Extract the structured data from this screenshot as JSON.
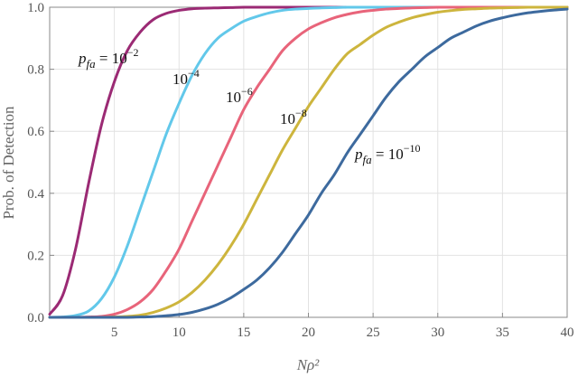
{
  "chart_data": {
    "type": "line",
    "xlabel": "Nρ²",
    "ylabel": "Prob. of Detection",
    "xlim": [
      0,
      40
    ],
    "ylim": [
      0,
      1
    ],
    "x_ticks": [
      5,
      10,
      15,
      20,
      25,
      30,
      35,
      40
    ],
    "y_ticks": [
      0.0,
      0.2,
      0.4,
      0.6,
      0.8,
      1.0
    ],
    "y_tick_labels": [
      "0.0",
      "0.2",
      "0.4",
      "0.6",
      "0.8",
      "1.0"
    ],
    "grid": true,
    "x": [
      0,
      1,
      2,
      3,
      4,
      5,
      6,
      7,
      8,
      9,
      10,
      11,
      12,
      13,
      14,
      15,
      16,
      17,
      18,
      19,
      20,
      21,
      22,
      23,
      24,
      25,
      26,
      27,
      28,
      29,
      30,
      31,
      32,
      33,
      34,
      35,
      36,
      37,
      38,
      39,
      40
    ],
    "series": [
      {
        "pfa_exp": "-2",
        "color": "#9b2a74",
        "values": [
          0.01,
          0.07,
          0.22,
          0.43,
          0.62,
          0.76,
          0.86,
          0.92,
          0.96,
          0.98,
          0.99,
          0.995,
          0.997,
          0.998,
          0.999,
          1.0,
          1.0,
          1.0,
          1.0,
          1.0,
          1.0,
          1.0,
          1.0,
          1.0,
          1.0,
          1.0,
          1.0,
          1.0,
          1.0,
          1.0,
          1.0,
          1.0,
          1.0,
          1.0,
          1.0,
          1.0,
          1.0,
          1.0,
          1.0,
          1.0,
          1.0
        ]
      },
      {
        "pfa_exp": "-4",
        "color": "#62c8ea",
        "values": [
          0.0001,
          0.001,
          0.006,
          0.02,
          0.06,
          0.13,
          0.23,
          0.35,
          0.47,
          0.59,
          0.69,
          0.78,
          0.85,
          0.9,
          0.93,
          0.955,
          0.97,
          0.982,
          0.99,
          0.994,
          0.996,
          0.998,
          0.999,
          1.0,
          1.0,
          1.0,
          1.0,
          1.0,
          1.0,
          1.0,
          1.0,
          1.0,
          1.0,
          1.0,
          1.0,
          1.0,
          1.0,
          1.0,
          1.0,
          1.0,
          1.0
        ]
      },
      {
        "pfa_exp": "-6",
        "color": "#e8647a",
        "values": [
          0.0,
          0.0,
          0.0,
          0.001,
          0.003,
          0.01,
          0.025,
          0.05,
          0.09,
          0.15,
          0.22,
          0.31,
          0.4,
          0.49,
          0.58,
          0.67,
          0.74,
          0.8,
          0.86,
          0.9,
          0.93,
          0.95,
          0.966,
          0.977,
          0.985,
          0.99,
          0.994,
          0.996,
          0.998,
          0.999,
          1.0,
          1.0,
          1.0,
          1.0,
          1.0,
          1.0,
          1.0,
          1.0,
          1.0,
          1.0,
          1.0
        ]
      },
      {
        "pfa_exp": "-8",
        "color": "#cdb53d",
        "values": [
          0.0,
          0.0,
          0.0,
          0.0,
          0.0,
          0.001,
          0.003,
          0.007,
          0.016,
          0.03,
          0.05,
          0.08,
          0.12,
          0.17,
          0.23,
          0.3,
          0.38,
          0.46,
          0.54,
          0.61,
          0.68,
          0.74,
          0.8,
          0.85,
          0.88,
          0.91,
          0.935,
          0.952,
          0.966,
          0.976,
          0.984,
          0.989,
          0.993,
          0.995,
          0.997,
          0.998,
          0.999,
          1.0,
          1.0,
          1.0,
          1.0
        ]
      },
      {
        "pfa_exp": "-10",
        "color": "#3d6a9e",
        "values": [
          0.0,
          0.0,
          0.0,
          0.0,
          0.0,
          0.0,
          0.0,
          0.001,
          0.002,
          0.005,
          0.009,
          0.016,
          0.027,
          0.042,
          0.063,
          0.09,
          0.12,
          0.16,
          0.21,
          0.27,
          0.33,
          0.4,
          0.46,
          0.53,
          0.59,
          0.65,
          0.71,
          0.76,
          0.8,
          0.84,
          0.87,
          0.9,
          0.92,
          0.94,
          0.955,
          0.966,
          0.975,
          0.982,
          0.987,
          0.991,
          0.994
        ]
      }
    ],
    "annotations": [
      {
        "prefix": "p",
        "subscript": "fa",
        "eq": " = 10",
        "exponent": "−2"
      },
      {
        "prefix": "",
        "subscript": "",
        "eq": "10",
        "exponent": "−4"
      },
      {
        "prefix": "",
        "subscript": "",
        "eq": "10",
        "exponent": "−6"
      },
      {
        "prefix": "",
        "subscript": "",
        "eq": "10",
        "exponent": "−8"
      },
      {
        "prefix": "p",
        "subscript": "fa",
        "eq": " = 10",
        "exponent": "−10"
      }
    ]
  }
}
